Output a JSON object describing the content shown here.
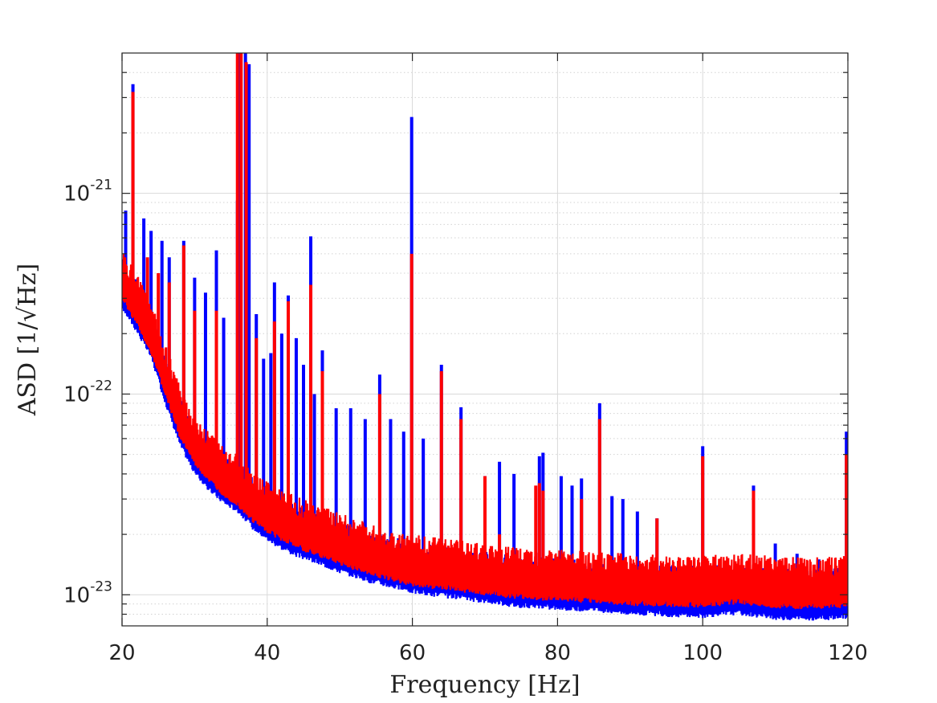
{
  "chart_data": {
    "type": "line",
    "title": "",
    "xlabel": "Frequency [Hz]",
    "ylabel": "ASD [1/√Hz]",
    "xlim": [
      20,
      120
    ],
    "ylim": [
      7e-24,
      5e-21
    ],
    "yscale": "log",
    "grid": true,
    "xticks": [
      20,
      40,
      60,
      80,
      100,
      120
    ],
    "xtick_labels": [
      "20",
      "40",
      "60",
      "80",
      "100",
      "120"
    ],
    "yticks": [
      {
        "value": 1e-21,
        "base": "10",
        "exponent": "-21"
      },
      {
        "value": 1e-22,
        "base": "10",
        "exponent": "-22"
      },
      {
        "value": 1e-23,
        "base": "10",
        "exponent": "-23"
      }
    ],
    "series": [
      {
        "color": "#0000ff",
        "floor": [
          [
            20,
            3e-22
          ],
          [
            22,
            2.3e-22
          ],
          [
            24,
            1.7e-22
          ],
          [
            26,
            1e-22
          ],
          [
            28,
            6.2e-23
          ],
          [
            30,
            4.5e-23
          ],
          [
            32,
            3.7e-23
          ],
          [
            34,
            3.2e-23
          ],
          [
            36,
            2.9e-23
          ],
          [
            38,
            2.4e-23
          ],
          [
            40,
            2.1e-23
          ],
          [
            42,
            1.9e-23
          ],
          [
            44,
            1.75e-23
          ],
          [
            46,
            1.65e-23
          ],
          [
            48,
            1.55e-23
          ],
          [
            50,
            1.45e-23
          ],
          [
            52,
            1.38e-23
          ],
          [
            54,
            1.3e-23
          ],
          [
            56,
            1.25e-23
          ],
          [
            58,
            1.2e-23
          ],
          [
            60,
            1.15e-23
          ],
          [
            62,
            1.12e-23
          ],
          [
            64,
            1.1e-23
          ],
          [
            66,
            1.07e-23
          ],
          [
            68,
            1.05e-23
          ],
          [
            70,
            1.03e-23
          ],
          [
            72,
            1.01e-23
          ],
          [
            74,
            9.8e-24
          ],
          [
            76,
            9.7e-24
          ],
          [
            78,
            9.6e-24
          ],
          [
            80,
            9.5e-24
          ],
          [
            85,
            9.3e-24
          ],
          [
            90,
            9e-24
          ],
          [
            95,
            8.8e-24
          ],
          [
            100,
            8.7e-24
          ],
          [
            105,
            9e-24
          ],
          [
            110,
            8.5e-24
          ],
          [
            115,
            8.4e-24
          ],
          [
            120,
            8.6e-24
          ]
        ],
        "lines": [
          [
            20.5,
            8.2e-22
          ],
          [
            21.5,
            3.5e-21
          ],
          [
            23,
            7.5e-22
          ],
          [
            24,
            6.5e-22
          ],
          [
            25.5,
            5.8e-22
          ],
          [
            26.5,
            4.8e-22
          ],
          [
            28.5,
            5.8e-22
          ],
          [
            30,
            3.8e-22
          ],
          [
            31.5,
            3.2e-22
          ],
          [
            33,
            5.2e-22
          ],
          [
            34,
            2.4e-22
          ],
          [
            35.9,
            9.2e-22
          ],
          [
            36.2,
            5e-21
          ],
          [
            37,
            5e-21
          ],
          [
            37.5,
            4.4e-21
          ],
          [
            38.5,
            2.5e-22
          ],
          [
            39.5,
            1.5e-22
          ],
          [
            40.5,
            1.6e-22
          ],
          [
            41,
            3.6e-22
          ],
          [
            42,
            2e-22
          ],
          [
            42.9,
            3.1e-22
          ],
          [
            44,
            1.9e-22
          ],
          [
            45,
            1.4e-22
          ],
          [
            46,
            6.1e-22
          ],
          [
            46.5,
            1e-22
          ],
          [
            47.6,
            1.65e-22
          ],
          [
            49.5,
            8.5e-23
          ],
          [
            51.5,
            8.5e-23
          ],
          [
            53.5,
            7.5e-23
          ],
          [
            55.5,
            1.25e-22
          ],
          [
            57,
            7.5e-23
          ],
          [
            58.8,
            6.5e-23
          ],
          [
            59.9,
            2.4e-21
          ],
          [
            61.5,
            6e-23
          ],
          [
            64,
            1.4e-22
          ],
          [
            66.7,
            8.6e-23
          ],
          [
            70,
            3.9e-23
          ],
          [
            72,
            4.6e-23
          ],
          [
            74,
            4e-23
          ],
          [
            77.5,
            4.9e-23
          ],
          [
            78,
            5.1e-23
          ],
          [
            80.5,
            3.9e-23
          ],
          [
            82,
            3.5e-23
          ],
          [
            83.3,
            3.8e-23
          ],
          [
            85.8,
            9e-23
          ],
          [
            87.5,
            3.1e-23
          ],
          [
            89,
            3e-23
          ],
          [
            91,
            2.6e-23
          ],
          [
            93.7,
            2.4e-23
          ],
          [
            100,
            5.5e-23
          ],
          [
            107,
            3.5e-23
          ],
          [
            110,
            1.8e-23
          ],
          [
            113,
            1.6e-23
          ],
          [
            116,
            1.5e-23
          ],
          [
            119.8,
            6.5e-23
          ]
        ]
      },
      {
        "color": "#ff0000",
        "floor": [
          [
            20,
            3.3e-22
          ],
          [
            22,
            2.5e-22
          ],
          [
            24,
            1.8e-22
          ],
          [
            26,
            1.1e-22
          ],
          [
            28,
            6.8e-23
          ],
          [
            30,
            5e-23
          ],
          [
            32,
            4.1e-23
          ],
          [
            34,
            3.5e-23
          ],
          [
            36,
            3.1e-23
          ],
          [
            38,
            2.6e-23
          ],
          [
            40,
            2.3e-23
          ],
          [
            42,
            2.1e-23
          ],
          [
            44,
            1.95e-23
          ],
          [
            46,
            1.8e-23
          ],
          [
            48,
            1.7e-23
          ],
          [
            50,
            1.6e-23
          ],
          [
            52,
            1.5e-23
          ],
          [
            54,
            1.42e-23
          ],
          [
            56,
            1.36e-23
          ],
          [
            58,
            1.3e-23
          ],
          [
            60,
            1.25e-23
          ],
          [
            62,
            1.22e-23
          ],
          [
            64,
            1.2e-23
          ],
          [
            66,
            1.18e-23
          ],
          [
            68,
            1.15e-23
          ],
          [
            70,
            1.13e-23
          ],
          [
            72,
            1.11e-23
          ],
          [
            74,
            1.08e-23
          ],
          [
            76,
            1.07e-23
          ],
          [
            78,
            1.06e-23
          ],
          [
            80,
            1.05e-23
          ],
          [
            85,
            1.03e-23
          ],
          [
            90,
            1e-23
          ],
          [
            95,
            9.9e-24
          ],
          [
            100,
            9.8e-24
          ],
          [
            105,
            1.02e-23
          ],
          [
            110,
            9.7e-24
          ],
          [
            115,
            9.6e-24
          ],
          [
            120,
            9.8e-24
          ]
        ],
        "lines": [
          [
            21.5,
            3.2e-21
          ],
          [
            23.5,
            4.8e-22
          ],
          [
            25,
            4e-22
          ],
          [
            26.5,
            3.6e-22
          ],
          [
            28.5,
            5.5e-22
          ],
          [
            30,
            2.6e-22
          ],
          [
            33,
            2.6e-22
          ],
          [
            35.9,
            5e-21
          ],
          [
            36.4,
            5e-21
          ],
          [
            37.1,
            4.5e-21
          ],
          [
            38.5,
            1.9e-22
          ],
          [
            41,
            2.3e-22
          ],
          [
            42.9,
            2.9e-22
          ],
          [
            46,
            3.5e-22
          ],
          [
            47.6,
            1.3e-22
          ],
          [
            55.5,
            1e-22
          ],
          [
            59.9,
            5e-22
          ],
          [
            64,
            1.3e-22
          ],
          [
            66.7,
            7.5e-23
          ],
          [
            70,
            3.9e-23
          ],
          [
            72,
            2e-23
          ],
          [
            77,
            3.5e-23
          ],
          [
            77.5,
            3.6e-23
          ],
          [
            78,
            3.3e-23
          ],
          [
            83.3,
            3e-23
          ],
          [
            85.8,
            7.5e-23
          ],
          [
            93.7,
            2.4e-23
          ],
          [
            100,
            4.9e-23
          ],
          [
            107,
            3.3e-23
          ],
          [
            119.8,
            5e-23
          ]
        ]
      }
    ]
  }
}
